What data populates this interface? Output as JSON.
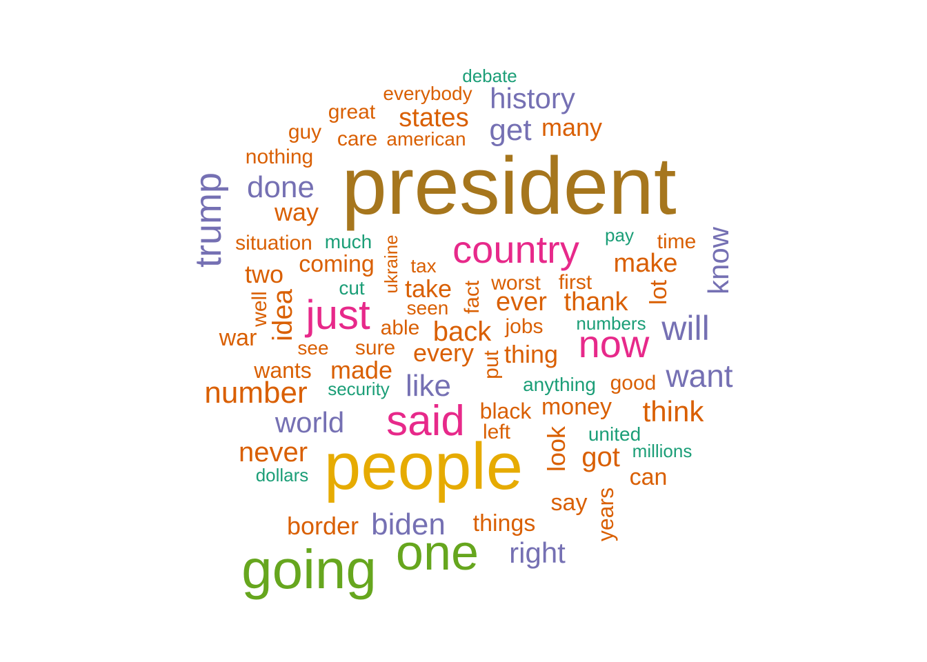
{
  "colors": {
    "teal": "#1b9e77",
    "orange": "#d95f02",
    "purple": "#7570b3",
    "pink": "#e7298a",
    "green": "#66a61e",
    "gold": "#e6ab02",
    "brown": "#a6761d"
  },
  "words": [
    {
      "text": "president",
      "color": "brown"
    },
    {
      "text": "people",
      "color": "gold"
    },
    {
      "text": "going",
      "color": "green"
    },
    {
      "text": "one",
      "color": "green"
    },
    {
      "text": "country",
      "color": "pink"
    },
    {
      "text": "said",
      "color": "pink"
    },
    {
      "text": "just",
      "color": "pink"
    },
    {
      "text": "now",
      "color": "pink"
    },
    {
      "text": "trump",
      "color": "purple"
    },
    {
      "text": "history",
      "color": "purple"
    },
    {
      "text": "get",
      "color": "purple"
    },
    {
      "text": "done",
      "color": "purple"
    },
    {
      "text": "know",
      "color": "purple"
    },
    {
      "text": "will",
      "color": "purple"
    },
    {
      "text": "want",
      "color": "purple"
    },
    {
      "text": "like",
      "color": "purple"
    },
    {
      "text": "world",
      "color": "purple"
    },
    {
      "text": "biden",
      "color": "purple"
    },
    {
      "text": "right",
      "color": "purple"
    },
    {
      "text": "debate",
      "color": "teal"
    },
    {
      "text": "everybody",
      "color": "orange"
    },
    {
      "text": "great",
      "color": "orange"
    },
    {
      "text": "states",
      "color": "orange"
    },
    {
      "text": "many",
      "color": "orange"
    },
    {
      "text": "guy",
      "color": "orange"
    },
    {
      "text": "care",
      "color": "orange"
    },
    {
      "text": "american",
      "color": "orange"
    },
    {
      "text": "nothing",
      "color": "orange"
    },
    {
      "text": "way",
      "color": "orange"
    },
    {
      "text": "situation",
      "color": "orange"
    },
    {
      "text": "much",
      "color": "teal"
    },
    {
      "text": "ukraine",
      "color": "orange"
    },
    {
      "text": "pay",
      "color": "teal"
    },
    {
      "text": "time",
      "color": "orange"
    },
    {
      "text": "coming",
      "color": "orange"
    },
    {
      "text": "tax",
      "color": "orange"
    },
    {
      "text": "make",
      "color": "orange"
    },
    {
      "text": "two",
      "color": "orange"
    },
    {
      "text": "cut",
      "color": "teal"
    },
    {
      "text": "take",
      "color": "orange"
    },
    {
      "text": "fact",
      "color": "orange"
    },
    {
      "text": "worst",
      "color": "orange"
    },
    {
      "text": "first",
      "color": "orange"
    },
    {
      "text": "lot",
      "color": "orange"
    },
    {
      "text": "well",
      "color": "orange"
    },
    {
      "text": "idea",
      "color": "orange"
    },
    {
      "text": "seen",
      "color": "orange"
    },
    {
      "text": "ever",
      "color": "orange"
    },
    {
      "text": "thank",
      "color": "orange"
    },
    {
      "text": "able",
      "color": "orange"
    },
    {
      "text": "back",
      "color": "orange"
    },
    {
      "text": "jobs",
      "color": "orange"
    },
    {
      "text": "numbers",
      "color": "teal"
    },
    {
      "text": "war",
      "color": "orange"
    },
    {
      "text": "see",
      "color": "orange"
    },
    {
      "text": "sure",
      "color": "orange"
    },
    {
      "text": "every",
      "color": "orange"
    },
    {
      "text": "put",
      "color": "orange"
    },
    {
      "text": "thing",
      "color": "orange"
    },
    {
      "text": "wants",
      "color": "orange"
    },
    {
      "text": "made",
      "color": "orange"
    },
    {
      "text": "number",
      "color": "orange"
    },
    {
      "text": "security",
      "color": "teal"
    },
    {
      "text": "anything",
      "color": "teal"
    },
    {
      "text": "good",
      "color": "orange"
    },
    {
      "text": "black",
      "color": "orange"
    },
    {
      "text": "money",
      "color": "orange"
    },
    {
      "text": "think",
      "color": "orange"
    },
    {
      "text": "left",
      "color": "orange"
    },
    {
      "text": "look",
      "color": "orange"
    },
    {
      "text": "united",
      "color": "teal"
    },
    {
      "text": "never",
      "color": "orange"
    },
    {
      "text": "got",
      "color": "orange"
    },
    {
      "text": "millions",
      "color": "teal"
    },
    {
      "text": "dollars",
      "color": "teal"
    },
    {
      "text": "can",
      "color": "orange"
    },
    {
      "text": "say",
      "color": "orange"
    },
    {
      "text": "years",
      "color": "orange"
    },
    {
      "text": "border",
      "color": "orange"
    },
    {
      "text": "things",
      "color": "orange"
    }
  ]
}
